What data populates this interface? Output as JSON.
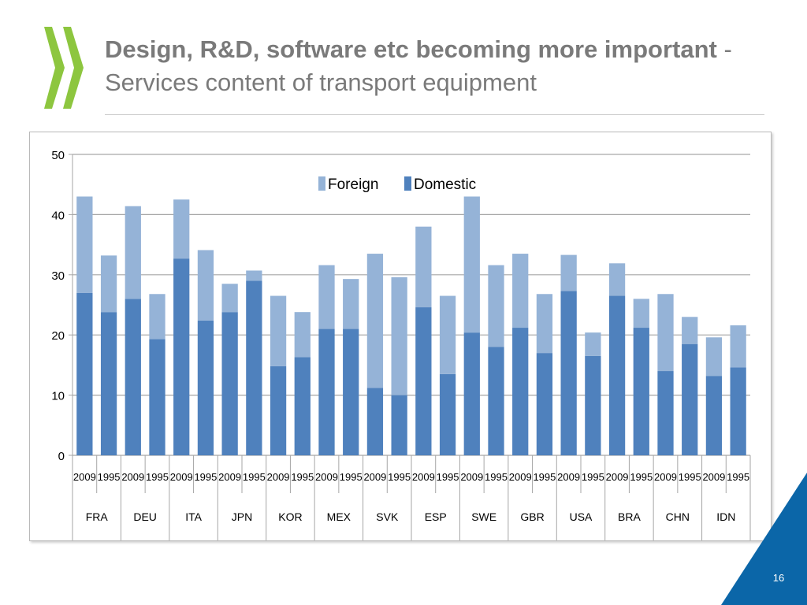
{
  "slide": {
    "title_bold": "Design, R&D, software etc becoming more important",
    "title_separator": " - ",
    "title_rest": "Services content of transport equipment",
    "page_number": "16"
  },
  "colors": {
    "domestic": "#4f81bd",
    "foreign": "#95b3d7",
    "title": "#7a7a7a",
    "logo": "#8dc63f",
    "corner": "#0b66a8"
  },
  "chart_data": {
    "type": "bar",
    "stacked": true,
    "countries": [
      "FRA",
      "DEU",
      "ITA",
      "JPN",
      "KOR",
      "MEX",
      "SVK",
      "ESP",
      "SWE",
      "GBR",
      "USA",
      "BRA",
      "CHN",
      "IDN"
    ],
    "years": [
      "2009",
      "1995"
    ],
    "categories": [
      "FRA 2009",
      "FRA 1995",
      "DEU 2009",
      "DEU 1995",
      "ITA 2009",
      "ITA 1995",
      "JPN 2009",
      "JPN 1995",
      "KOR 2009",
      "KOR 1995",
      "MEX 2009",
      "MEX 1995",
      "SVK 2009",
      "SVK 1995",
      "ESP 2009",
      "ESP 1995",
      "SWE 2009",
      "SWE 1995",
      "GBR 2009",
      "GBR 1995",
      "USA 2009",
      "USA 1995",
      "BRA 2009",
      "BRA 1995",
      "CHN 2009",
      "CHN 1995",
      "IDN 2009",
      "IDN 1995"
    ],
    "series": [
      {
        "name": "Domestic",
        "values": [
          27,
          23.8,
          26,
          19.3,
          32.7,
          22.4,
          23.8,
          29,
          14.8,
          16.3,
          21,
          21,
          11.2,
          10,
          24.6,
          13.5,
          20.4,
          18,
          21.2,
          17,
          27.3,
          16.5,
          26.5,
          21.2,
          14,
          18.5,
          13.2,
          14.6
        ]
      },
      {
        "name": "Foreign",
        "values": [
          16,
          9.4,
          15.4,
          7.5,
          9.8,
          11.7,
          4.7,
          1.7,
          11.7,
          7.5,
          10.6,
          8.3,
          22.3,
          19.6,
          13.4,
          13,
          22.6,
          13.6,
          12.3,
          9.8,
          6,
          3.9,
          5.4,
          4.8,
          12.8,
          4.5,
          6.4,
          7
        ]
      }
    ],
    "legend": {
      "position": "top-center"
    },
    "ylim": [
      0,
      50
    ],
    "yticks": [
      0,
      10,
      20,
      30,
      40,
      50
    ],
    "grid": true,
    "xlabel": "",
    "ylabel": ""
  }
}
